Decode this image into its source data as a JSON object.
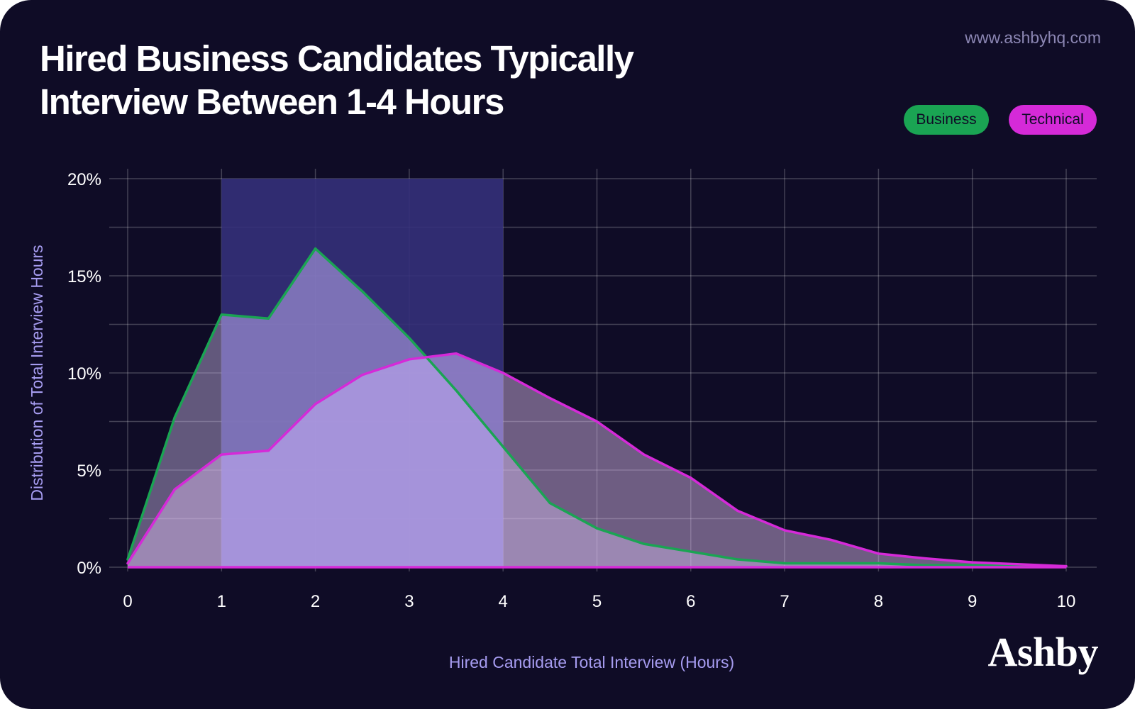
{
  "header": {
    "title_line1": "Hired Business Candidates Typically",
    "title_line2": "Interview Between 1-4 Hours",
    "url": "www.ashbyhq.com"
  },
  "legend": {
    "business": "Business",
    "technical": "Technical"
  },
  "brand": "Ashby",
  "colors": {
    "background": "#0f0c26",
    "business": "#1aa453",
    "technical": "#d52ad8",
    "highlight": "#34307a",
    "axis_label": "#a69cf0"
  },
  "chart_data": {
    "type": "area",
    "xlabel": "Hired Candidate Total Interview (Hours)",
    "ylabel": "Distribution of Total Interview Hours",
    "xlim": [
      0,
      10
    ],
    "ylim": [
      0,
      20
    ],
    "x_ticks": [
      0,
      1,
      2,
      3,
      4,
      5,
      6,
      7,
      8,
      9,
      10
    ],
    "y_ticks": [
      0,
      5,
      10,
      15,
      20
    ],
    "y_tick_labels": [
      "0%",
      "5%",
      "10%",
      "15%",
      "20%"
    ],
    "grid": true,
    "legend_position": "top-right",
    "highlight_band": [
      1,
      4
    ],
    "x": [
      0,
      0.5,
      1,
      1.5,
      2,
      2.5,
      3,
      3.5,
      4,
      4.5,
      5,
      5.5,
      6,
      6.5,
      7,
      7.5,
      8,
      8.5,
      9,
      9.5,
      10
    ],
    "series": [
      {
        "name": "Business",
        "values": [
          0.4,
          7.7,
          13.0,
          12.8,
          16.4,
          14.2,
          11.8,
          9.1,
          6.2,
          3.3,
          2.0,
          1.2,
          0.8,
          0.4,
          0.2,
          0.2,
          0.2,
          0.1,
          0.1,
          0.05,
          0.05
        ]
      },
      {
        "name": "Technical",
        "values": [
          0.2,
          4.0,
          5.8,
          6.0,
          8.4,
          9.9,
          10.7,
          11.0,
          10.0,
          8.7,
          7.5,
          5.8,
          4.6,
          2.9,
          1.9,
          1.4,
          0.7,
          0.45,
          0.25,
          0.15,
          0.05
        ]
      }
    ]
  }
}
